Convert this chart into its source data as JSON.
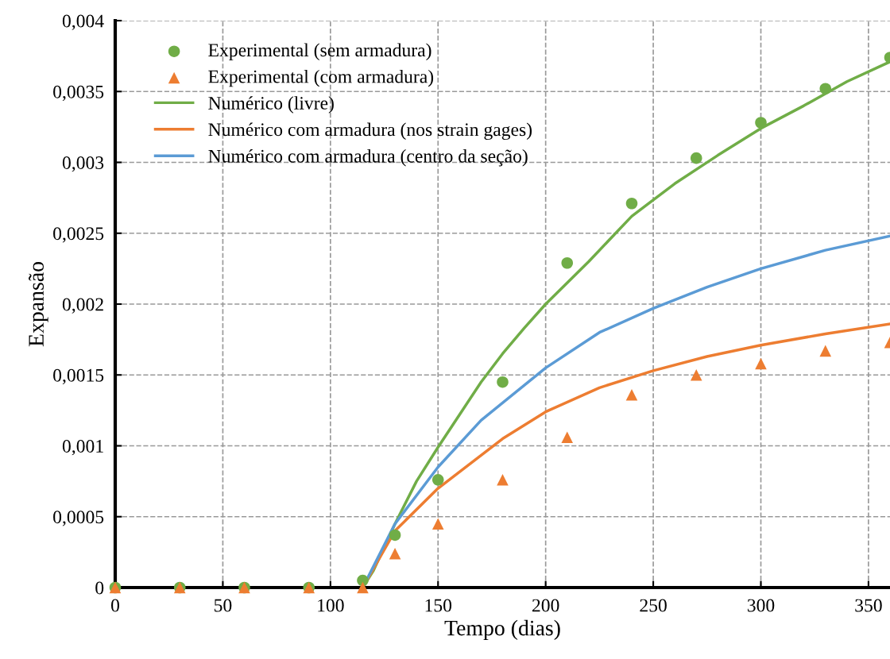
{
  "chart_data": {
    "type": "line",
    "xlabel": "Tempo (dias)",
    "ylabel": "Expansão",
    "xlim": [
      0,
      360
    ],
    "xticks": [
      0,
      50,
      100,
      150,
      200,
      250,
      300,
      350
    ],
    "ylim": [
      0,
      0.004
    ],
    "yticks": [
      {
        "value": 0,
        "label": "0"
      },
      {
        "value": 0.0005,
        "label": "0,0005"
      },
      {
        "value": 0.001,
        "label": "0,001"
      },
      {
        "value": 0.0015,
        "label": "0,0015"
      },
      {
        "value": 0.002,
        "label": "0,002"
      },
      {
        "value": 0.0025,
        "label": "0,0025"
      },
      {
        "value": 0.003,
        "label": "0,003"
      },
      {
        "value": 0.0035,
        "label": "0,0035"
      },
      {
        "value": 0.004,
        "label": "0,004"
      }
    ],
    "grid": true,
    "legend": "top left",
    "line_style": "solid",
    "series": [
      {
        "name": "Experimental (sem armadura)",
        "type": "scatter",
        "marker": "circle",
        "color": "#70ad47",
        "x": [
          0,
          30,
          60,
          90,
          115,
          130,
          150,
          180,
          210,
          240,
          270,
          300,
          330,
          360
        ],
        "values": [
          0,
          0,
          0,
          0,
          5e-05,
          0.00037,
          0.00076,
          0.00145,
          0.00229,
          0.00271,
          0.00303,
          0.00328,
          0.00352,
          0.00374
        ]
      },
      {
        "name": "Experimental (com armadura)",
        "type": "scatter",
        "marker": "triangle",
        "color": "#ed7d31",
        "x": [
          0,
          30,
          60,
          90,
          115,
          130,
          150,
          180,
          210,
          240,
          270,
          300,
          330,
          360
        ],
        "values": [
          0,
          0,
          0,
          0,
          0,
          0.00024,
          0.00045,
          0.00076,
          0.00106,
          0.00136,
          0.0015,
          0.00158,
          0.00167,
          0.00173
        ]
      },
      {
        "name": "Numérico (livre)",
        "color": "#70ad47",
        "x": [
          0,
          115,
          120,
          130,
          140,
          150,
          160,
          170,
          180,
          190,
          200,
          220,
          240,
          260,
          280,
          300,
          320,
          340,
          360
        ],
        "values": [
          0,
          0,
          0.00012,
          0.00045,
          0.00075,
          0.00099,
          0.00122,
          0.00145,
          0.00165,
          0.00183,
          0.002,
          0.0023,
          0.00262,
          0.00285,
          0.00305,
          0.00324,
          0.0034,
          0.00357,
          0.00371
        ]
      },
      {
        "name": "Numérico com armadura (nos strain gages)",
        "color": "#ed7d31",
        "x": [
          0,
          115,
          130,
          150,
          180,
          200,
          225,
          250,
          275,
          300,
          330,
          360
        ],
        "values": [
          0,
          0,
          0.0004,
          0.0007,
          0.00105,
          0.00124,
          0.00141,
          0.00153,
          0.00163,
          0.00171,
          0.00179,
          0.00186
        ]
      },
      {
        "name": "Numérico com armadura (centro da seção)",
        "color": "#5b9bd5",
        "x": [
          0,
          115,
          130,
          150,
          170,
          200,
          225,
          250,
          275,
          300,
          330,
          360
        ],
        "values": [
          0,
          0,
          0.00045,
          0.00085,
          0.00118,
          0.00155,
          0.0018,
          0.00197,
          0.00212,
          0.00225,
          0.00238,
          0.00248
        ]
      }
    ]
  }
}
